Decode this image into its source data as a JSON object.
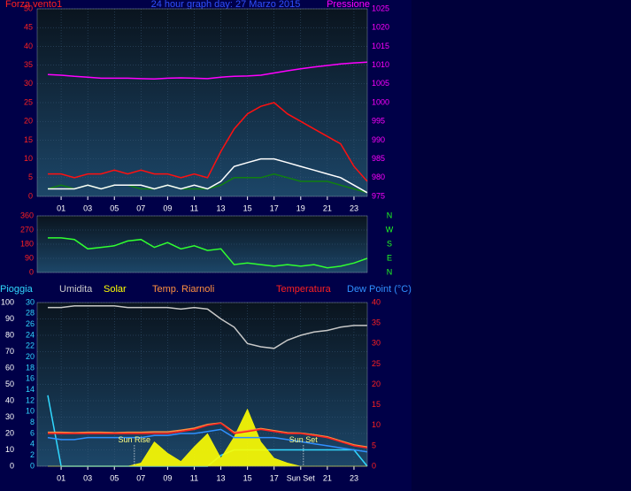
{
  "chart_data": [
    {
      "type": "line",
      "title": "24 hour graph day: 27 Marzo 2015",
      "y_label": "Forza vento1",
      "y2_label": "Pressione",
      "xlim": [
        -0.8,
        24
      ],
      "xticks": [
        {
          "value": 1,
          "label": "01"
        },
        {
          "value": 3,
          "label": "03"
        },
        {
          "value": 5,
          "label": "05"
        },
        {
          "value": 7,
          "label": "07"
        },
        {
          "value": 9,
          "label": "09"
        },
        {
          "value": 11,
          "label": "11"
        },
        {
          "value": 13,
          "label": "13"
        },
        {
          "value": 15,
          "label": "15"
        },
        {
          "value": 17,
          "label": "17"
        },
        {
          "value": 19,
          "label": "19"
        },
        {
          "value": 21,
          "label": "21"
        },
        {
          "value": 23,
          "label": "23"
        }
      ],
      "ylim": [
        0,
        50
      ],
      "yticks": [
        0,
        5,
        10,
        15,
        20,
        25,
        30,
        35,
        40,
        45,
        50
      ],
      "y2lim": [
        975,
        1025
      ],
      "y2ticks": [
        975,
        980,
        985,
        990,
        995,
        1000,
        1005,
        1010,
        1015,
        1020,
        1025
      ],
      "ytick_color": "#ff2020",
      "y2tick_color": "#ff00ff",
      "grid": true,
      "x": [
        0,
        1,
        2,
        3,
        4,
        5,
        6,
        7,
        8,
        9,
        10,
        11,
        12,
        13,
        14,
        15,
        16,
        17,
        18,
        19,
        20,
        21,
        22,
        23,
        24
      ],
      "series": [
        {
          "color": "#ff1010",
          "axis": "y",
          "values": [
            6,
            6,
            5,
            6,
            6,
            7,
            6,
            7,
            6,
            6,
            5,
            6,
            5,
            12,
            18,
            22,
            24,
            25,
            22,
            20,
            18,
            16,
            14,
            8,
            4
          ]
        },
        {
          "color": "#108010",
          "axis": "y",
          "values": [
            2,
            3,
            2,
            3,
            2,
            3,
            3,
            2,
            2,
            3,
            2,
            2,
            2,
            3,
            5,
            5,
            5,
            6,
            5,
            4,
            4,
            4,
            3,
            2,
            1
          ]
        },
        {
          "color": "#ffffff",
          "axis": "y",
          "values": [
            2,
            2,
            2,
            3,
            2,
            3,
            3,
            3,
            2,
            3,
            2,
            3,
            2,
            4,
            8,
            9,
            10,
            10,
            9,
            8,
            7,
            6,
            5,
            3,
            1
          ]
        },
        {
          "color": "#ff00ff",
          "axis": "y2",
          "values": [
            1007.5,
            1007.3,
            1007,
            1006.8,
            1006.5,
            1006.5,
            1006.5,
            1006.4,
            1006.3,
            1006.5,
            1006.6,
            1006.5,
            1006.4,
            1006.8,
            1007,
            1007.1,
            1007.3,
            1007.9,
            1008.5,
            1009,
            1009.5,
            1009.9,
            1010.3,
            1010.6,
            1010.8
          ]
        }
      ]
    },
    {
      "type": "line",
      "xlim": [
        -0.8,
        24
      ],
      "ylim": [
        0,
        360
      ],
      "yticks": [
        0,
        90,
        180,
        270,
        360
      ],
      "y2lim": [
        0,
        360
      ],
      "y2ticks": [
        {
          "value": 360,
          "label": "N"
        },
        {
          "value": 270,
          "label": "W"
        },
        {
          "value": 180,
          "label": "S"
        },
        {
          "value": 90,
          "label": "E"
        },
        {
          "value": 0,
          "label": "N"
        }
      ],
      "ytick_color": "#ff2020",
      "y2tick_color": "#20ff20",
      "grid": true,
      "x": [
        0,
        1,
        2,
        3,
        4,
        5,
        6,
        7,
        8,
        9,
        10,
        11,
        12,
        13,
        14,
        15,
        16,
        17,
        18,
        19,
        20,
        21,
        22,
        23,
        24
      ],
      "series": [
        {
          "color": "#30ff30",
          "axis": "y",
          "values": [
            220,
            220,
            210,
            150,
            160,
            170,
            200,
            210,
            160,
            190,
            150,
            170,
            140,
            150,
            50,
            60,
            50,
            40,
            50,
            40,
            50,
            30,
            40,
            60,
            90
          ]
        }
      ]
    },
    {
      "type": "line",
      "xlim": [
        -0.8,
        24
      ],
      "xticks": [
        {
          "value": 1,
          "label": "01"
        },
        {
          "value": 3,
          "label": "03"
        },
        {
          "value": 5,
          "label": "05"
        },
        {
          "value": 7,
          "label": "07"
        },
        {
          "value": 9,
          "label": "09"
        },
        {
          "value": 11,
          "label": "11"
        },
        {
          "value": 13,
          "label": "13"
        },
        {
          "value": 15,
          "label": "15"
        },
        {
          "value": 17,
          "label": "17"
        },
        {
          "value": 19,
          "label": "Sun Set"
        },
        {
          "value": 21,
          "label": "21"
        },
        {
          "value": 23,
          "label": "23"
        }
      ],
      "ylim": [
        0,
        100
      ],
      "yticks": [
        0,
        10,
        20,
        30,
        40,
        50,
        60,
        70,
        80,
        90,
        100
      ],
      "y2lim": [
        0,
        40
      ],
      "y2ticks": [
        0,
        5,
        10,
        15,
        20,
        25,
        30,
        35,
        40
      ],
      "y3lim": [
        0,
        30
      ],
      "y3ticks": [
        0,
        2,
        4,
        6,
        8,
        10,
        12,
        14,
        16,
        18,
        20,
        22,
        24,
        26,
        28,
        30
      ],
      "ytick_color": "#ffffff",
      "y2tick_color": "#ff2020",
      "y3tick_color": "#30d8ff",
      "grid": true,
      "annotations": [
        {
          "text": "Sun Rise",
          "x": 6.5,
          "y": 16
        },
        {
          "text": "Sun Set",
          "x": 19.2,
          "y": 16
        }
      ],
      "x": [
        0,
        1,
        2,
        3,
        4,
        5,
        6,
        7,
        8,
        9,
        10,
        11,
        12,
        13,
        14,
        15,
        16,
        17,
        18,
        19,
        20,
        21,
        22,
        23,
        24
      ],
      "series": [
        {
          "name": "Pioggia",
          "color": "#30d8ff",
          "axis": "y3",
          "values": [
            13,
            0,
            0,
            0,
            0,
            0,
            0,
            0,
            0,
            0,
            0,
            0,
            0,
            2,
            3,
            3,
            3,
            3,
            3,
            3,
            3,
            3,
            3,
            3,
            0
          ]
        },
        {
          "name": "Umidita",
          "color": "#c8c8c8",
          "axis": "y",
          "values": [
            97,
            97,
            98,
            98,
            98,
            98,
            97,
            97,
            97,
            97,
            96,
            97,
            96,
            90,
            85,
            75,
            73,
            72,
            77,
            80,
            82,
            83,
            85,
            86,
            86
          ]
        },
        {
          "name": "Solar",
          "color": "#ffff00",
          "axis": "y",
          "fill": true,
          "values": [
            0,
            0,
            0,
            0,
            0,
            0,
            0,
            2,
            15,
            8,
            3,
            12,
            20,
            5,
            18,
            35,
            15,
            5,
            2,
            0,
            0,
            0,
            0,
            0,
            0
          ]
        },
        {
          "name": "Temp. Riarnoli",
          "color": "#ff9040",
          "axis": "y2",
          "values": [
            8.3,
            8.3,
            8.2,
            8.3,
            8.3,
            8.2,
            8.3,
            8.3,
            8.4,
            8.4,
            8.8,
            9.3,
            10.2,
            10.6,
            8.3,
            8.7,
            9.2,
            8.7,
            8.2,
            8.1,
            7.7,
            7.2,
            6.2,
            5.2,
            4.7
          ]
        },
        {
          "name": "Temperatura",
          "color": "#ff2020",
          "axis": "y2",
          "values": [
            8,
            8,
            8,
            8,
            8,
            8,
            8,
            8,
            8,
            8,
            8.5,
            9,
            10,
            10.5,
            8,
            8.5,
            9,
            8.5,
            8,
            8,
            7.5,
            7,
            6,
            5,
            4.5
          ]
        },
        {
          "name": "Dew Point (°C)",
          "color": "#3090ff",
          "axis": "y2",
          "values": [
            7,
            6.5,
            6.5,
            7,
            7,
            7,
            7,
            7,
            7.5,
            7.5,
            8,
            8,
            8.5,
            9,
            7,
            7,
            7,
            7,
            6.5,
            6,
            5.5,
            5,
            4.5,
            4,
            3.5
          ]
        }
      ]
    }
  ]
}
